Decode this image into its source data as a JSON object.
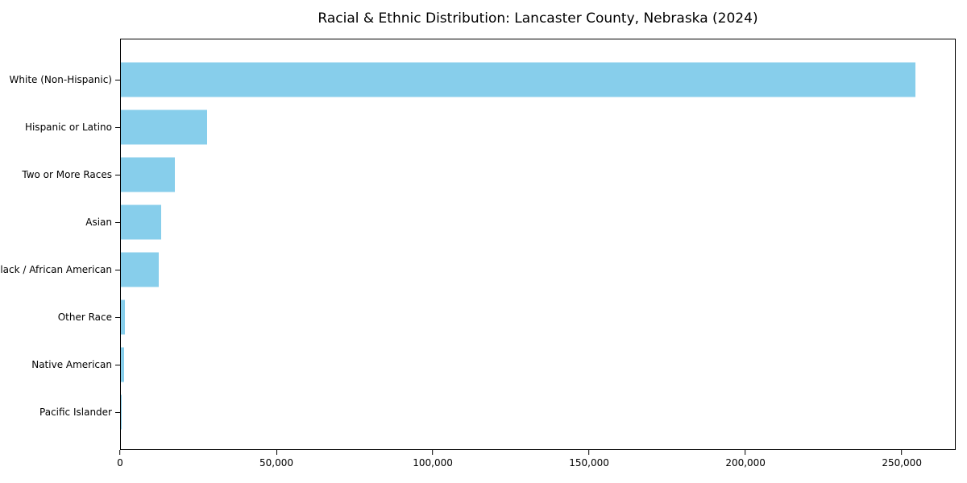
{
  "figure": {
    "background_color": "#ffffff",
    "plot_border_color": "#000000"
  },
  "chart_data": {
    "type": "bar",
    "orientation": "horizontal",
    "title": "Racial & Ethnic Distribution: Lancaster County, Nebraska (2024)",
    "categories": [
      "White (Non-Hispanic)",
      "Hispanic or Latino",
      "Two or More Races",
      "Asian",
      "Black / African American",
      "Other Race",
      "Native American",
      "Pacific Islander"
    ],
    "values": [
      254500,
      27500,
      17200,
      12900,
      12200,
      1200,
      1100,
      250
    ],
    "bar_color": "#87CEEB",
    "xlabel": "",
    "ylabel": "",
    "xlim": [
      0,
      267225
    ],
    "x_ticks": [
      0,
      50000,
      100000,
      150000,
      200000,
      250000
    ],
    "x_tick_labels": [
      "0",
      "50,000",
      "100,000",
      "150,000",
      "200,000",
      "250,000"
    ],
    "grid": false,
    "legend": false
  }
}
